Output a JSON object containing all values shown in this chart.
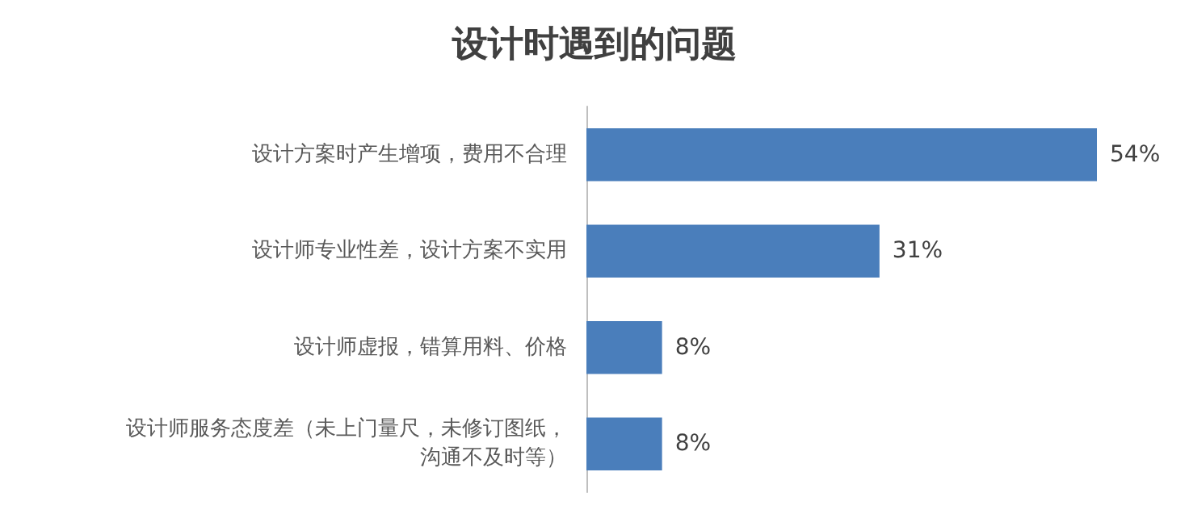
{
  "chart_data": {
    "type": "bar",
    "orientation": "horizontal",
    "title": "设计时遇到的问题",
    "categories": [
      "设计方案时产生增项，费用不合理",
      "设计师专业性差，设计方案不实用",
      "设计师虚报，错算用料、价格",
      "设计师服务态度差（未上门量尺，未修订图纸，沟通不及时等）"
    ],
    "values": [
      54,
      31,
      8,
      8
    ],
    "value_labels": [
      "54%",
      "31%",
      "8%",
      "8%"
    ],
    "color": "#4a7ebb"
  }
}
